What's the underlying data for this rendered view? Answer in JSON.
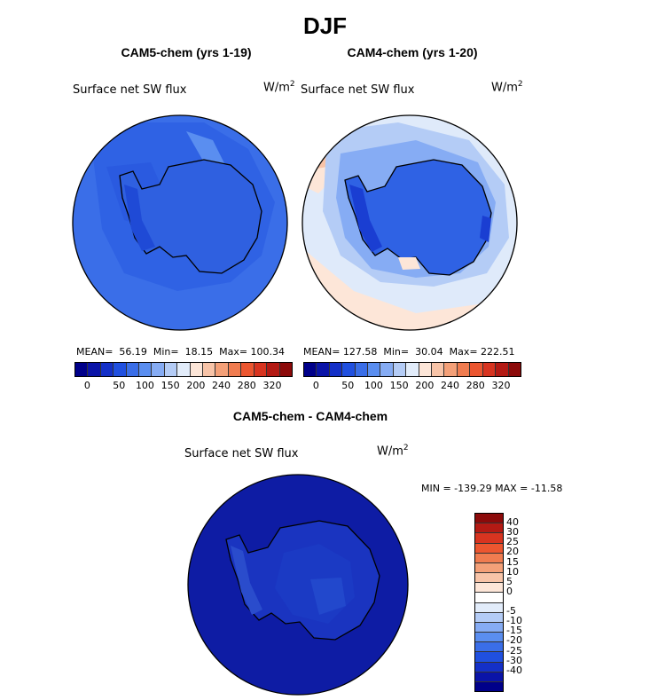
{
  "title": "DJF",
  "panels": [
    {
      "title": "CAM5-chem (yrs 1-19)",
      "field": "Surface net SW flux",
      "units": "W/m",
      "units_sup": "2",
      "stats": "MEAN=  56.19  Min=  18.15  Max= 100.34"
    },
    {
      "title": "CAM4-chem (yrs 1-20)",
      "field": "Surface net SW flux",
      "units": "W/m",
      "units_sup": "2",
      "stats": "MEAN= 127.58  Min=  30.04  Max= 222.51"
    },
    {
      "title": "CAM5-chem - CAM4-chem",
      "field": "Surface net SW flux",
      "units": "W/m",
      "units_sup": "2",
      "stats": "MIN = -139.29 MAX = -11.58"
    }
  ],
  "colorbar_top": {
    "colors": [
      "#00008a",
      "#0a14a8",
      "#1430c8",
      "#2050e0",
      "#3a6ee8",
      "#5a8ef0",
      "#86acf4",
      "#b4ccf6",
      "#e2ecfa",
      "#fde6d8",
      "#f8c4a8",
      "#f4a078",
      "#f07c50",
      "#ec5630",
      "#d83420",
      "#b41a14",
      "#8c0a0a"
    ],
    "ticks": [
      "0",
      "50",
      "100",
      "150",
      "200",
      "240",
      "280",
      "320"
    ]
  },
  "colorbar_diff": {
    "colors": [
      "#8c0a0a",
      "#b41a14",
      "#d83420",
      "#ec5630",
      "#f07c50",
      "#f4a078",
      "#f8c4a8",
      "#fde6d8",
      "#ffffff",
      "#e2ecfa",
      "#b4ccf6",
      "#86acf4",
      "#5a8ef0",
      "#3a6ee8",
      "#2050e0",
      "#1430c8",
      "#0a14a8",
      "#00008a"
    ],
    "labels": [
      "40",
      "30",
      "25",
      "20",
      "15",
      "10",
      "5",
      "0",
      "-5",
      "-10",
      "-15",
      "-20",
      "-25",
      "-30",
      "-40"
    ]
  }
}
